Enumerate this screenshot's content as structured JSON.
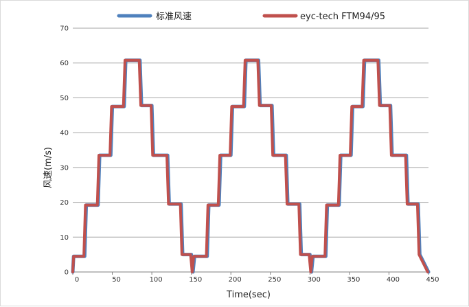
{
  "chart_data": {
    "type": "line",
    "title": "",
    "xlabel": "Time(sec)",
    "ylabel": "风速(m/s)",
    "xlim": [
      0,
      450
    ],
    "ylim": [
      0,
      70
    ],
    "x_ticks": [
      0,
      50,
      100,
      150,
      200,
      250,
      300,
      350,
      400,
      450
    ],
    "y_ticks": [
      0,
      10,
      20,
      30,
      40,
      50,
      60,
      70
    ],
    "grid": "horizontal",
    "legend_position": "top",
    "series": [
      {
        "name": "标准风速",
        "color": "#4f81bd",
        "x": [
          0,
          1,
          2,
          15,
          17,
          32,
          34,
          48,
          50,
          65,
          67,
          85,
          87,
          100,
          102,
          120,
          122,
          137,
          139,
          150,
          151,
          152,
          154,
          170,
          172,
          185,
          187,
          200,
          202,
          217,
          219,
          235,
          237,
          252,
          254,
          270,
          272,
          287,
          289,
          300,
          301,
          302,
          304,
          320,
          322,
          337,
          339,
          352,
          354,
          367,
          369,
          387,
          389,
          402,
          404,
          422,
          424,
          437,
          439,
          450
        ],
        "y": [
          0,
          4.5,
          4.5,
          4.5,
          19.2,
          19.2,
          33.5,
          33.5,
          47.5,
          47.5,
          60.8,
          60.8,
          47.8,
          47.8,
          33.5,
          33.5,
          19.5,
          19.5,
          5,
          5,
          2.5,
          0,
          4.5,
          4.5,
          19.2,
          19.2,
          33.5,
          33.5,
          47.5,
          47.5,
          60.8,
          60.8,
          47.8,
          47.8,
          33.5,
          33.5,
          19.5,
          19.5,
          5,
          5,
          2.5,
          0,
          4.5,
          4.5,
          19.2,
          19.2,
          33.5,
          33.5,
          47.5,
          47.5,
          60.8,
          60.8,
          47.8,
          47.8,
          33.5,
          33.5,
          19.5,
          19.5,
          5,
          0
        ]
      },
      {
        "name": "eyc-tech FTM94/95",
        "color": "#c0504d",
        "x": [
          0,
          1,
          2,
          14,
          16,
          31,
          33,
          47,
          49,
          64,
          66,
          84,
          86,
          99,
          101,
          119,
          121,
          136,
          138,
          149,
          150,
          151,
          153,
          169,
          171,
          184,
          186,
          199,
          201,
          216,
          218,
          234,
          236,
          251,
          253,
          269,
          271,
          286,
          288,
          299,
          300,
          301,
          303,
          319,
          321,
          336,
          338,
          351,
          353,
          366,
          368,
          386,
          388,
          401,
          403,
          421,
          423,
          436,
          438,
          449
        ],
        "y": [
          0,
          4.5,
          4.5,
          4.5,
          19.2,
          19.2,
          33.5,
          33.5,
          47.5,
          47.5,
          60.8,
          60.8,
          47.8,
          47.8,
          33.5,
          33.5,
          19.5,
          19.5,
          5,
          5,
          2.5,
          0,
          4.5,
          4.5,
          19.2,
          19.2,
          33.5,
          33.5,
          47.5,
          47.5,
          60.8,
          60.8,
          47.8,
          47.8,
          33.5,
          33.5,
          19.5,
          19.5,
          5,
          5,
          2.5,
          0,
          4.5,
          4.5,
          19.2,
          19.2,
          33.5,
          33.5,
          47.5,
          47.5,
          60.8,
          60.8,
          47.8,
          47.8,
          33.5,
          33.5,
          19.5,
          19.5,
          5,
          0
        ]
      }
    ]
  }
}
